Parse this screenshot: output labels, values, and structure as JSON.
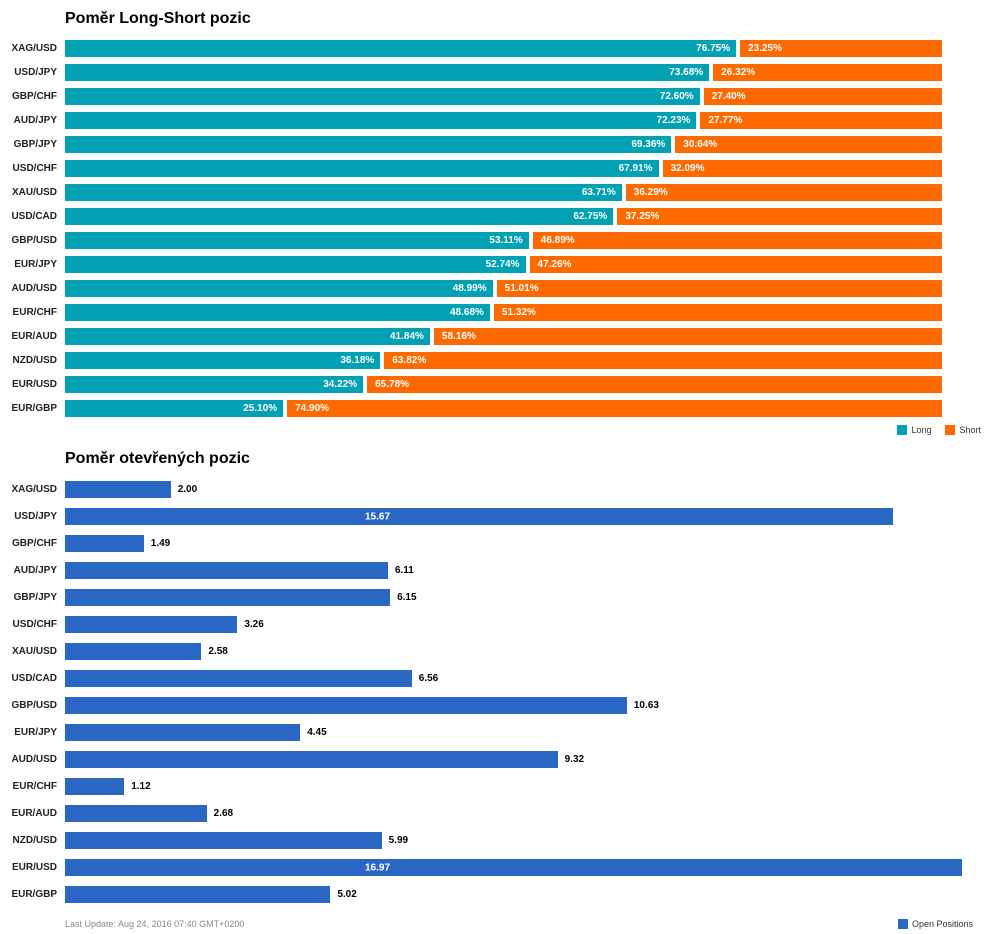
{
  "chart_data": [
    {
      "type": "bar",
      "orientation": "horizontal",
      "stacked": true,
      "title": "Poměr Long-Short pozic",
      "value_format": "percent",
      "xlim": [
        0,
        100
      ],
      "grid": false,
      "legend_position": "bottom-right",
      "categories": [
        "XAG/USD",
        "USD/JPY",
        "GBP/CHF",
        "AUD/JPY",
        "GBP/JPY",
        "USD/CHF",
        "XAU/USD",
        "USD/CAD",
        "GBP/USD",
        "EUR/JPY",
        "AUD/USD",
        "EUR/CHF",
        "EUR/AUD",
        "NZD/USD",
        "EUR/USD",
        "EUR/GBP"
      ],
      "series": [
        {
          "name": "Long",
          "color": "#00A1B3",
          "values": [
            76.75,
            73.68,
            72.6,
            72.23,
            69.36,
            67.91,
            63.71,
            62.75,
            53.11,
            52.74,
            48.99,
            48.68,
            41.84,
            36.18,
            34.22,
            25.1
          ]
        },
        {
          "name": "Short",
          "color": "#FF6A00",
          "values": [
            23.25,
            26.32,
            27.4,
            27.77,
            30.64,
            32.09,
            36.29,
            37.25,
            46.89,
            47.26,
            51.01,
            51.32,
            58.16,
            63.82,
            65.78,
            74.9
          ]
        }
      ]
    },
    {
      "type": "bar",
      "orientation": "horizontal",
      "stacked": false,
      "title": "Poměr otevřených pozic",
      "xlim": [
        0,
        16.97
      ],
      "grid": false,
      "legend_position": "bottom-right",
      "categories": [
        "XAG/USD",
        "USD/JPY",
        "GBP/CHF",
        "AUD/JPY",
        "GBP/JPY",
        "USD/CHF",
        "XAU/USD",
        "USD/CAD",
        "GBP/USD",
        "EUR/JPY",
        "AUD/USD",
        "EUR/CHF",
        "EUR/AUD",
        "NZD/USD",
        "EUR/USD",
        "EUR/GBP"
      ],
      "series": [
        {
          "name": "Open Positions",
          "color": "#2A66C4",
          "values": [
            2.0,
            15.67,
            1.49,
            6.11,
            6.15,
            3.26,
            2.58,
            6.56,
            10.63,
            4.45,
            9.32,
            1.12,
            2.68,
            5.99,
            16.97,
            5.02
          ]
        }
      ]
    }
  ],
  "footer": {
    "last_update": "Last Update: Aug 24, 2016 07:40 GMT+0200"
  }
}
